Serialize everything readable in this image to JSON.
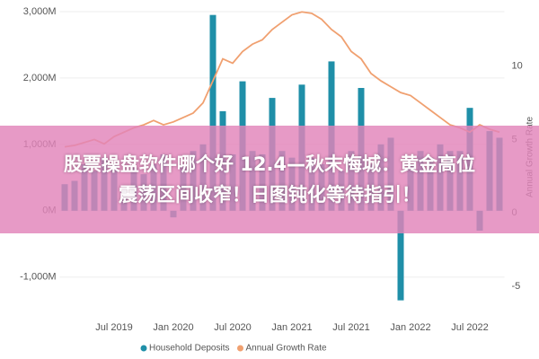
{
  "chart_data": {
    "type": "bar-line",
    "categories": [
      null,
      null,
      null,
      null,
      null,
      "Jul 2019",
      null,
      null,
      null,
      null,
      null,
      "Jan 2020",
      null,
      null,
      null,
      null,
      null,
      "Jul 2020",
      null,
      null,
      null,
      null,
      null,
      "Jan 2021",
      null,
      null,
      null,
      null,
      null,
      "Jul 2021",
      null,
      null,
      null,
      null,
      null,
      "Jan 2022",
      null,
      null,
      null,
      null,
      null,
      "Jul 2022",
      null,
      null,
      null
    ],
    "series": [
      {
        "name": "Household Deposits",
        "color": "#1f8fa8",
        "values": [
          400,
          450,
          700,
          600,
          800,
          700,
          300,
          650,
          550,
          700,
          850,
          -100,
          700,
          900,
          1000,
          2950,
          1500,
          850,
          1950,
          900,
          850,
          1700,
          900,
          800,
          1900,
          800,
          700,
          2250,
          600,
          900,
          1850,
          700,
          1000,
          1100,
          -1350,
          700,
          900,
          800,
          1000,
          900,
          900,
          1550,
          -300,
          1200,
          1100
        ]
      },
      {
        "name": "Annual Growth Rate",
        "color": "#f0a070",
        "axis": "y2",
        "values": [
          4.5,
          4.6,
          4.8,
          5.0,
          4.7,
          5.2,
          5.5,
          5.8,
          6.0,
          6.3,
          6.0,
          6.2,
          6.5,
          6.8,
          7.5,
          9.0,
          10.5,
          10.2,
          11.0,
          11.5,
          11.8,
          12.5,
          13.0,
          13.5,
          13.7,
          13.6,
          13.2,
          12.5,
          12.0,
          11.0,
          10.5,
          9.5,
          9.0,
          8.6,
          8.2,
          8.0,
          7.5,
          7.0,
          6.5,
          6.0,
          5.8,
          5.5,
          6.0,
          5.7,
          5.5
        ]
      }
    ],
    "ylim": [
      -1490,
      3040
    ],
    "yticks": [
      {
        "value": -1000,
        "label": "-1,000M"
      },
      {
        "value": 0,
        "label": "0M"
      },
      {
        "value": 1000,
        "label": "1,000M"
      },
      {
        "value": 2000,
        "label": "2,000M"
      },
      {
        "value": 3000,
        "label": "3,000M"
      }
    ],
    "y2lim": [
      -6.6,
      13.9
    ],
    "y2ticks": [
      -5,
      0,
      5,
      10
    ],
    "y2label": "Annual Growth Rate",
    "grid": true,
    "legend": "bottom"
  },
  "overlay": {
    "lines": [
      "股票操盘软件哪个好 12.4—秋末悔城：黄金高位",
      "震荡区间收窄！日图钝化等待指引！"
    ]
  }
}
